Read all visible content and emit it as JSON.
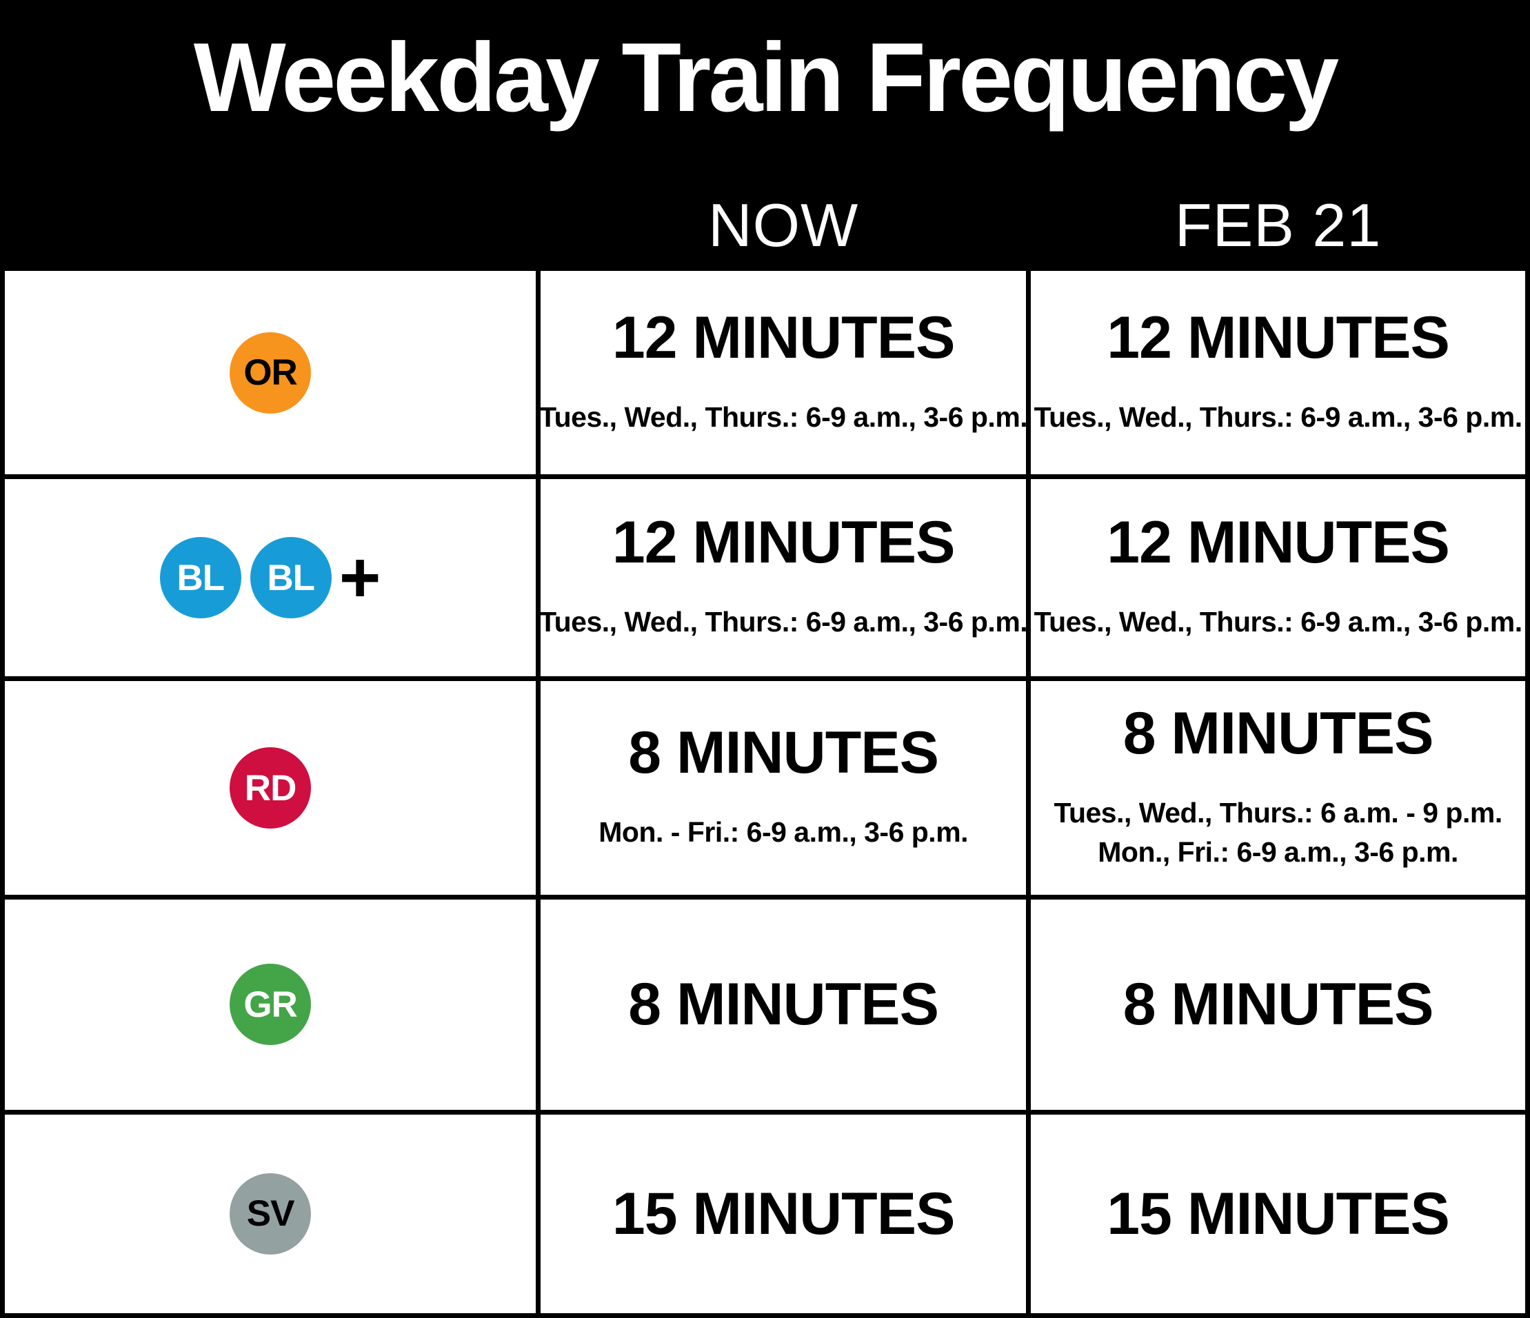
{
  "title": "Weekday Train Frequency",
  "columns": {
    "now": "NOW",
    "feb21": "FEB 21"
  },
  "colors": {
    "header_bg": "#000000",
    "grid_line": "#000000",
    "cell_bg": "#ffffff",
    "orange_line": "#F7941E",
    "blue_line": "#189CD8",
    "red_line": "#CE0F3F",
    "green_line": "#43A547",
    "silver_line": "#94A1A1"
  },
  "rows": [
    {
      "line": "orange",
      "badges": [
        {
          "label": "OR",
          "bg": "#F7941E",
          "fg": "#000000"
        }
      ],
      "plus": "",
      "now": {
        "frequency": "12 MINUTES",
        "schedule": [
          "Tues., Wed., Thurs.: 6-9 a.m., 3-6 p.m."
        ]
      },
      "feb21": {
        "frequency": "12 MINUTES",
        "schedule": [
          "Tues., Wed., Thurs.: 6-9 a.m., 3-6 p.m."
        ]
      }
    },
    {
      "line": "blue",
      "badges": [
        {
          "label": "BL",
          "bg": "#189CD8",
          "fg": "#ffffff"
        },
        {
          "label": "BL",
          "bg": "#189CD8",
          "fg": "#ffffff"
        }
      ],
      "plus": "+",
      "now": {
        "frequency": "12 MINUTES",
        "schedule": [
          "Tues., Wed., Thurs.: 6-9 a.m., 3-6 p.m."
        ]
      },
      "feb21": {
        "frequency": "12 MINUTES",
        "schedule": [
          "Tues., Wed., Thurs.: 6-9 a.m., 3-6 p.m."
        ]
      }
    },
    {
      "line": "red",
      "badges": [
        {
          "label": "RD",
          "bg": "#CE0F3F",
          "fg": "#ffffff"
        }
      ],
      "plus": "",
      "now": {
        "frequency": "8 MINUTES",
        "schedule": [
          "Mon. - Fri.: 6-9 a.m., 3-6 p.m."
        ]
      },
      "feb21": {
        "frequency": "8 MINUTES",
        "schedule": [
          "Tues., Wed., Thurs.: 6 a.m. - 9 p.m.",
          "Mon., Fri.: 6-9 a.m., 3-6 p.m."
        ]
      }
    },
    {
      "line": "green",
      "badges": [
        {
          "label": "GR",
          "bg": "#43A547",
          "fg": "#ffffff"
        }
      ],
      "plus": "",
      "now": {
        "frequency": "8 MINUTES",
        "schedule": []
      },
      "feb21": {
        "frequency": "8 MINUTES",
        "schedule": []
      }
    },
    {
      "line": "silver",
      "badges": [
        {
          "label": "SV",
          "bg": "#94A1A1",
          "fg": "#000000"
        }
      ],
      "plus": "",
      "now": {
        "frequency": "15 MINUTES",
        "schedule": []
      },
      "feb21": {
        "frequency": "15 MINUTES",
        "schedule": []
      }
    }
  ]
}
